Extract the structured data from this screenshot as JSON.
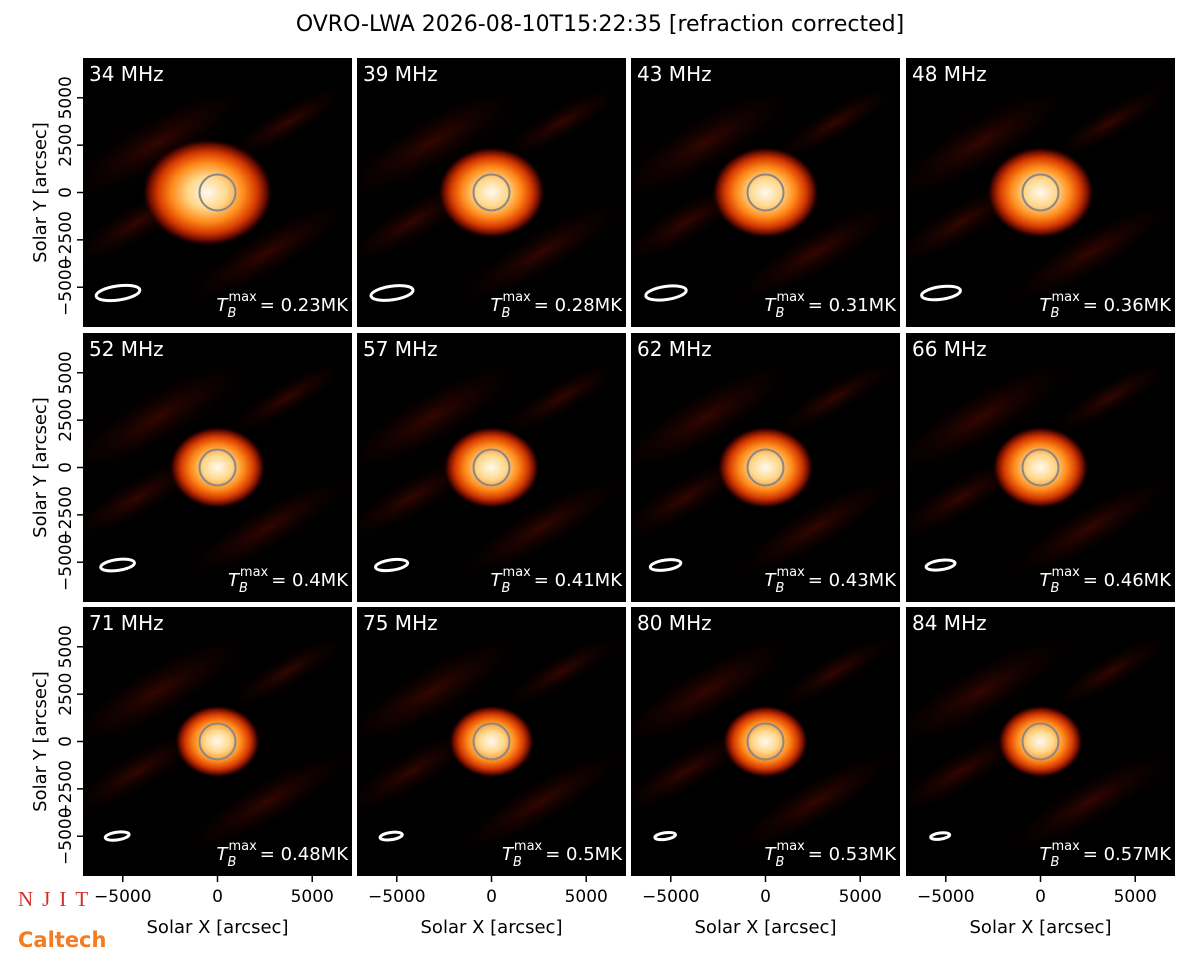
{
  "title": "OVRO-LWA 2026-08-10T15:22:35 [refraction corrected]",
  "logos": [
    "NJIT",
    "Caltech"
  ],
  "annotation_symbol": {
    "base": "T",
    "sub": "B",
    "sup": "max"
  },
  "chart_data": [
    {
      "type": "image",
      "title": "34 MHz",
      "annotation": "= 0.23MK",
      "xlim": [
        -7100,
        7100
      ],
      "ylim": [
        -7100,
        7100
      ],
      "ylabel": "Solar Y [arcsec]",
      "yticks": [
        {
          "value": -5000,
          "label": "−5000"
        },
        {
          "value": -2500,
          "label": "−2500"
        },
        0,
        2500,
        5000
      ]
    },
    {
      "type": "image",
      "title": "39 MHz",
      "annotation": "= 0.28MK",
      "xlim": [
        -7100,
        7100
      ],
      "ylim": [
        -7100,
        7100
      ]
    },
    {
      "type": "image",
      "title": "43 MHz",
      "annotation": "= 0.31MK",
      "xlim": [
        -7100,
        7100
      ],
      "ylim": [
        -7100,
        7100
      ]
    },
    {
      "type": "image",
      "title": "48 MHz",
      "annotation": "= 0.36MK",
      "xlim": [
        -7100,
        7100
      ],
      "ylim": [
        -7100,
        7100
      ]
    },
    {
      "type": "image",
      "title": "52 MHz",
      "annotation": "= 0.4MK",
      "xlim": [
        -7100,
        7100
      ],
      "ylim": [
        -7100,
        7100
      ],
      "ylabel": "Solar Y [arcsec]",
      "yticks": [
        {
          "value": -5000,
          "label": "−5000"
        },
        {
          "value": -2500,
          "label": "−2500"
        },
        0,
        2500,
        5000
      ]
    },
    {
      "type": "image",
      "title": "57 MHz",
      "annotation": "= 0.41MK",
      "xlim": [
        -7100,
        7100
      ],
      "ylim": [
        -7100,
        7100
      ]
    },
    {
      "type": "image",
      "title": "62 MHz",
      "annotation": "= 0.43MK",
      "xlim": [
        -7100,
        7100
      ],
      "ylim": [
        -7100,
        7100
      ]
    },
    {
      "type": "image",
      "title": "66 MHz",
      "annotation": "= 0.46MK",
      "xlim": [
        -7100,
        7100
      ],
      "ylim": [
        -7100,
        7100
      ]
    },
    {
      "type": "image",
      "title": "71 MHz",
      "annotation": "= 0.48MK",
      "xlim": [
        -7100,
        7100
      ],
      "ylim": [
        -7100,
        7100
      ],
      "ylabel": "Solar Y [arcsec]",
      "xlabel": "Solar X [arcsec]",
      "yticks": [
        {
          "value": -5000,
          "label": "−5000"
        },
        {
          "value": -2500,
          "label": "−2500"
        },
        0,
        2500,
        5000
      ],
      "xticks": [
        {
          "value": -5000,
          "label": "−5000"
        },
        0,
        5000
      ]
    },
    {
      "type": "image",
      "title": "75 MHz",
      "annotation": "= 0.5MK",
      "xlim": [
        -7100,
        7100
      ],
      "ylim": [
        -7100,
        7100
      ],
      "xlabel": "Solar X [arcsec]",
      "xticks": [
        {
          "value": -5000,
          "label": "−5000"
        },
        0,
        5000
      ]
    },
    {
      "type": "image",
      "title": "80 MHz",
      "annotation": "= 0.53MK",
      "xlim": [
        -7100,
        7100
      ],
      "ylim": [
        -7100,
        7100
      ],
      "xlabel": "Solar X [arcsec]",
      "xticks": [
        {
          "value": -5000,
          "label": "−5000"
        },
        0,
        5000
      ]
    },
    {
      "type": "image",
      "title": "84 MHz",
      "annotation": "= 0.57MK",
      "xlim": [
        -7100,
        7100
      ],
      "ylim": [
        -7100,
        7100
      ],
      "xlabel": "Solar X [arcsec]",
      "xticks": [
        {
          "value": -5000,
          "label": "−5000"
        },
        0,
        5000
      ]
    }
  ]
}
